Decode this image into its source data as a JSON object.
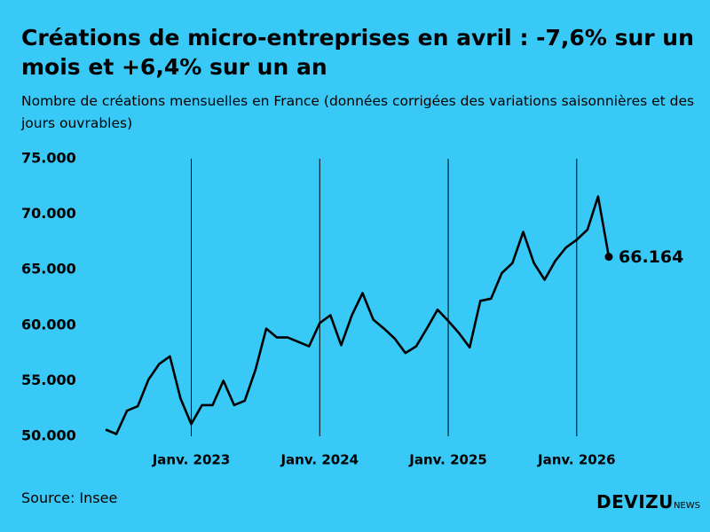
{
  "chart_data": {
    "type": "line",
    "title": "Créations de micro-entreprises en avril : -7,6% sur un mois et +6,4% sur un an",
    "subtitle": "Nombre de créations mensuelles en France (données corrigées des variations saisonnières et des jours ouvrables)",
    "source": "Source: Insee",
    "logo": "DEVIZU",
    "logo_suffix": "NEWS",
    "color": "#000000",
    "x": [
      "2022-05",
      "2022-06",
      "2022-07",
      "2022-08",
      "2022-09",
      "2022-10",
      "2022-11",
      "2022-12",
      "2023-01",
      "2023-02",
      "2023-03",
      "2023-04",
      "2023-05",
      "2023-06",
      "2023-07",
      "2023-08",
      "2023-09",
      "2023-10",
      "2023-11",
      "2023-12",
      "2024-01",
      "2024-02",
      "2024-03",
      "2024-04",
      "2024-05",
      "2024-06",
      "2024-07",
      "2024-08",
      "2024-09",
      "2024-10",
      "2024-11",
      "2024-12",
      "2025-01",
      "2025-02",
      "2025-03",
      "2025-04",
      "2025-05",
      "2025-06",
      "2025-07",
      "2025-08",
      "2025-09",
      "2025-10",
      "2025-11",
      "2025-12",
      "2026-01",
      "2026-02",
      "2026-03",
      "2026-04"
    ],
    "values": [
      50600,
      50200,
      52300,
      52700,
      55100,
      56500,
      57200,
      53400,
      51100,
      52800,
      52800,
      55000,
      52800,
      53200,
      56000,
      59700,
      58900,
      58900,
      58500,
      58100,
      60200,
      60900,
      58200,
      60900,
      62900,
      60500,
      59700,
      58800,
      57500,
      58100,
      59700,
      61400,
      60400,
      59300,
      58000,
      62200,
      62400,
      64700,
      65600,
      68400,
      65600,
      64100,
      65800,
      67000,
      67700,
      68600,
      71600,
      66164
    ],
    "value_labels": [
      null,
      null,
      null,
      null,
      null,
      null,
      null,
      null,
      null,
      null,
      null,
      null,
      null,
      null,
      null,
      null,
      null,
      null,
      null,
      null,
      null,
      null,
      null,
      null,
      null,
      null,
      null,
      null,
      null,
      null,
      null,
      null,
      null,
      null,
      null,
      null,
      null,
      null,
      null,
      null,
      null,
      null,
      null,
      null,
      null,
      null,
      null,
      "66.164"
    ],
    "xlim": [
      "2022-05",
      "2026-04"
    ],
    "xticks": [
      {
        "value": "2023-01",
        "label": "Janv. 2023"
      },
      {
        "value": "2024-01",
        "label": "Janv. 2024"
      },
      {
        "value": "2025-01",
        "label": "Janv. 2025"
      },
      {
        "value": "2026-01",
        "label": "Janv. 2026"
      }
    ],
    "ylim": [
      50000,
      75000
    ],
    "yticks": [
      {
        "value": 50000,
        "label": "50.000"
      },
      {
        "value": 55000,
        "label": "55.000"
      },
      {
        "value": 60000,
        "label": "60.000"
      },
      {
        "value": 65000,
        "label": "65.000"
      },
      {
        "value": 70000,
        "label": "70.000"
      },
      {
        "value": 75000,
        "label": "75.000"
      }
    ],
    "grid": "x"
  }
}
